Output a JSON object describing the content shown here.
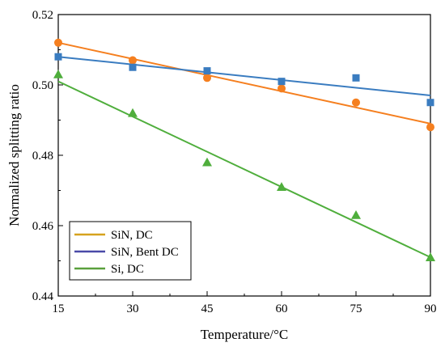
{
  "chart_data": {
    "type": "scatter",
    "title": "",
    "xlabel": "Temperature/°C",
    "ylabel": "Normalized splitting ratio",
    "xlim": [
      15,
      90
    ],
    "ylim": [
      0.44,
      0.52
    ],
    "x_ticks": [
      "15",
      "30",
      "45",
      "60",
      "75",
      "90"
    ],
    "y_ticks": [
      "0.44",
      "0.46",
      "0.48",
      "0.50",
      "0.52"
    ],
    "grid": false,
    "legend_position": "bottom-left",
    "series": [
      {
        "name": "SiN, DC",
        "marker": "circle",
        "marker_color": "#f57f1f",
        "legend_color": "#d6a21e",
        "points": [
          {
            "x": 15,
            "y": 0.512
          },
          {
            "x": 30,
            "y": 0.507
          },
          {
            "x": 45,
            "y": 0.502
          },
          {
            "x": 60,
            "y": 0.499
          },
          {
            "x": 75,
            "y": 0.495
          },
          {
            "x": 90,
            "y": 0.488
          }
        ],
        "fit": {
          "x": [
            15,
            90
          ],
          "y": [
            0.512,
            0.489
          ]
        }
      },
      {
        "name": "SiN, Bent DC",
        "marker": "square",
        "marker_color": "#3a7cc0",
        "legend_color": "#4a4aa8",
        "points": [
          {
            "x": 15,
            "y": 0.508
          },
          {
            "x": 30,
            "y": 0.505
          },
          {
            "x": 45,
            "y": 0.504
          },
          {
            "x": 60,
            "y": 0.501
          },
          {
            "x": 75,
            "y": 0.502
          },
          {
            "x": 90,
            "y": 0.495
          }
        ],
        "fit": {
          "x": [
            15,
            90
          ],
          "y": [
            0.508,
            0.497
          ]
        }
      },
      {
        "name": "Si, DC",
        "marker": "triangle",
        "marker_color": "#4fae3c",
        "legend_color": "#5aa03c",
        "points": [
          {
            "x": 15,
            "y": 0.503
          },
          {
            "x": 30,
            "y": 0.492
          },
          {
            "x": 45,
            "y": 0.478
          },
          {
            "x": 60,
            "y": 0.471
          },
          {
            "x": 75,
            "y": 0.463
          },
          {
            "x": 90,
            "y": 0.451
          }
        ],
        "fit": {
          "x": [
            15,
            90
          ],
          "y": [
            0.501,
            0.451
          ]
        }
      }
    ]
  }
}
